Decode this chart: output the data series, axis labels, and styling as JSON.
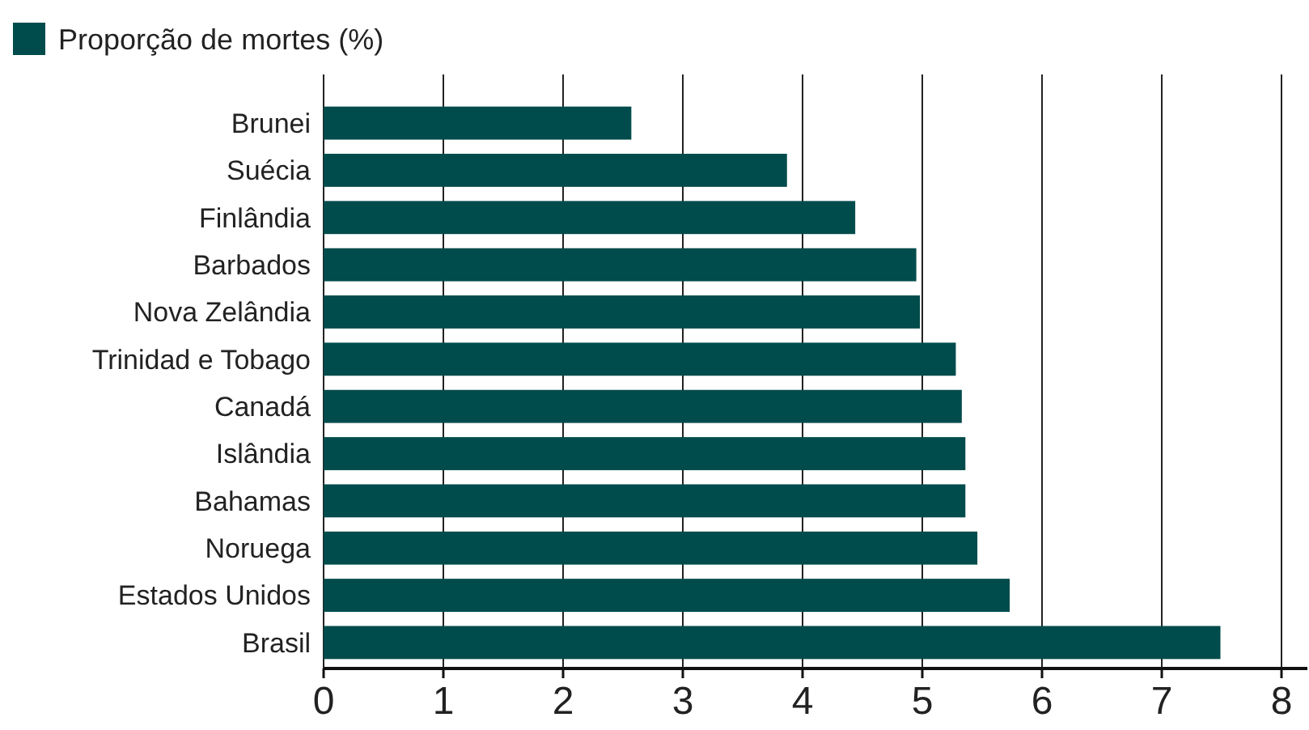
{
  "chart_data": {
    "type": "bar",
    "orientation": "horizontal",
    "categories": [
      "Brunei",
      "Suécia",
      "Finlândia",
      "Barbados",
      "Nova Zelândia",
      "Trinidad e Tobago",
      "Canadá",
      "Islândia",
      "Bahamas",
      "Noruega",
      "Estados Unidos",
      "Brasil"
    ],
    "series": [
      {
        "name": "Proporção de mortes (%)",
        "color": "#004b4b",
        "values": [
          2.57,
          3.87,
          4.44,
          4.95,
          4.98,
          5.28,
          5.33,
          5.36,
          5.36,
          5.46,
          5.73,
          7.49
        ]
      }
    ],
    "xlim": [
      0,
      8
    ],
    "xticks": [
      0,
      1,
      2,
      3,
      4,
      5,
      6,
      7,
      8
    ],
    "grid": "x",
    "legend": "top left"
  }
}
